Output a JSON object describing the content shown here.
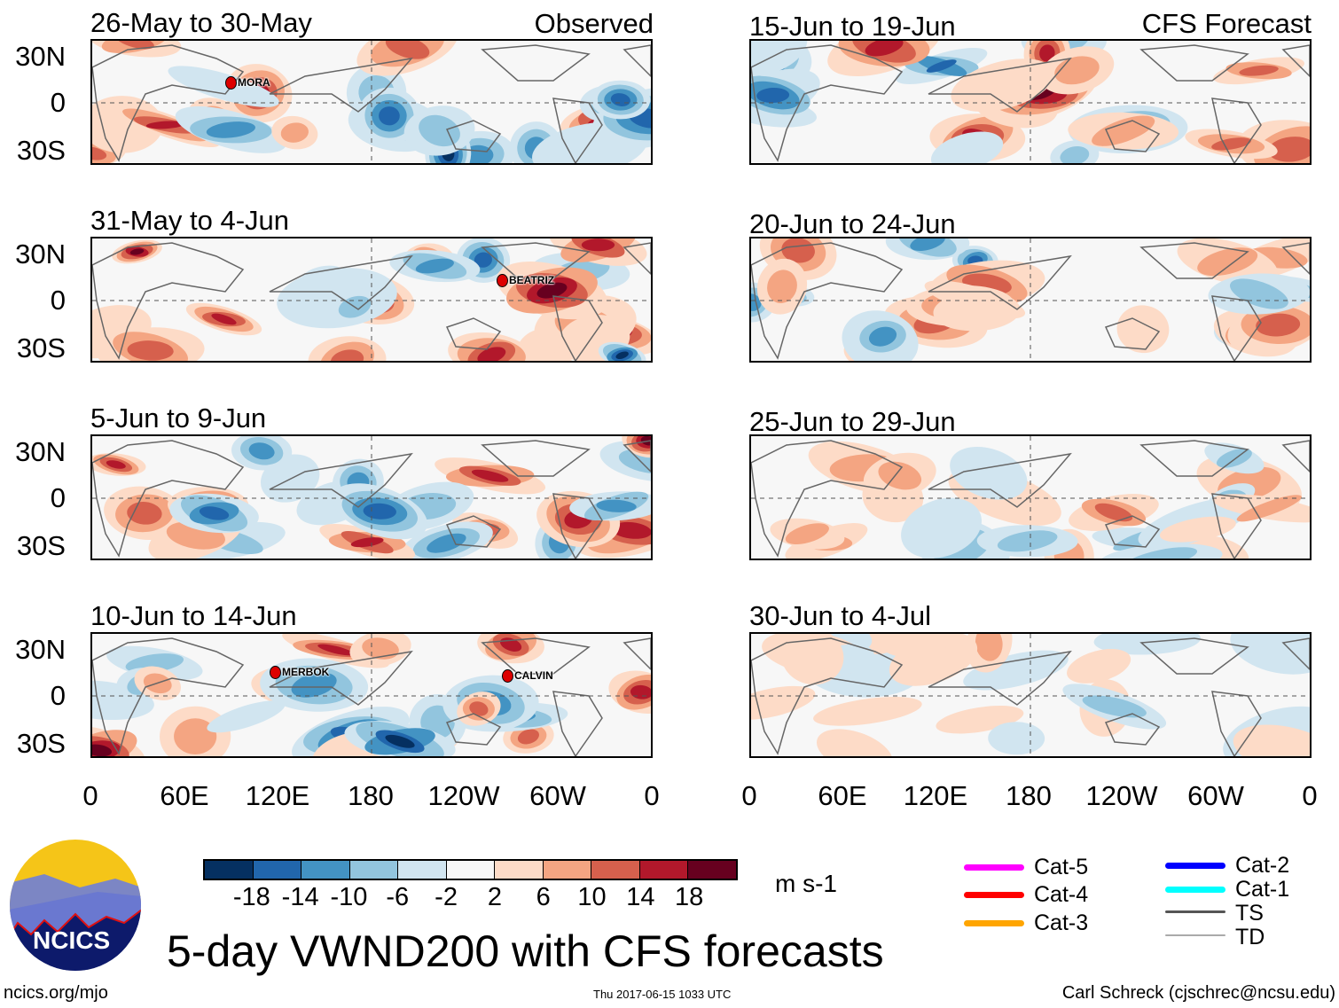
{
  "figure_title": "5-day VWND200 with CFS forecasts",
  "labels": {
    "observed": "Observed",
    "forecast": "CFS Forecast"
  },
  "observed_panels": [
    {
      "title": "26-May to 30-May",
      "storms": [
        {
          "name": "MORA"
        }
      ]
    },
    {
      "title": "31-May to 4-Jun",
      "storms": [
        {
          "name": "BEATRIZ"
        }
      ]
    },
    {
      "title": "5-Jun to 9-Jun",
      "storms": []
    },
    {
      "title": "10-Jun to 14-Jun",
      "storms": [
        {
          "name": "MERBOK"
        },
        {
          "name": "CALVIN"
        }
      ]
    }
  ],
  "forecast_panels": [
    {
      "title": "15-Jun to 19-Jun"
    },
    {
      "title": "20-Jun to 24-Jun"
    },
    {
      "title": "25-Jun to 29-Jun"
    },
    {
      "title": "30-Jun to 4-Jul"
    }
  ],
  "lat_labels": [
    "30N",
    "0",
    "30S"
  ],
  "lon_labels": [
    "0",
    "60E",
    "120E",
    "180",
    "120W",
    "60W",
    "0"
  ],
  "colorbar": {
    "units": "m s-1",
    "ticks": [
      "-18",
      "-14",
      "-10",
      "-6",
      "-2",
      "2",
      "6",
      "10",
      "14",
      "18"
    ],
    "colors": [
      "#053061",
      "#2166ac",
      "#4393c3",
      "#92c5de",
      "#d1e5f0",
      "#f7f7f7",
      "#fddbc7",
      "#f4a582",
      "#d6604d",
      "#b2182b",
      "#67001f"
    ]
  },
  "storm_legend": [
    {
      "label": "Cat-5",
      "color": "#ff00ff"
    },
    {
      "label": "Cat-4",
      "color": "#ff0000"
    },
    {
      "label": "Cat-3",
      "color": "#ffa500"
    },
    {
      "label": "Cat-2",
      "color": "#0000ff"
    },
    {
      "label": "Cat-1",
      "color": "#00ffff"
    },
    {
      "label": "TS",
      "color": "#555555"
    },
    {
      "label": "TD",
      "color": "#aaaaaa"
    }
  ],
  "logo": {
    "text": "NCICS"
  },
  "footer": {
    "left": "ncics.org/mjo",
    "center": "Thu 2017-06-15 1033 UTC",
    "right": "Carl Schreck (cjschrec@ncsu.edu)"
  }
}
